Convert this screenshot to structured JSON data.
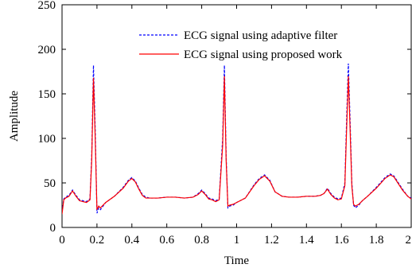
{
  "chart_data": {
    "type": "line",
    "title": "",
    "xlabel": "Time",
    "ylabel": "Amplitude",
    "xlim": [
      0,
      2
    ],
    "ylim": [
      0,
      250
    ],
    "xticks": [
      "0",
      "0.2",
      "0.4",
      "0.6",
      "0.8",
      "1",
      "1.2",
      "1.4",
      "1.6",
      "1.8",
      "2"
    ],
    "yticks": [
      "0",
      "50",
      "100",
      "150",
      "200",
      "250"
    ],
    "grid": false,
    "legend_position": "top-right",
    "series": [
      {
        "name": "ECG signal using adaptive filter",
        "color": "#0000ff",
        "dash": "dashed",
        "x": [
          0.0,
          0.01,
          0.02,
          0.04,
          0.06,
          0.08,
          0.1,
          0.12,
          0.14,
          0.16,
          0.17,
          0.18,
          0.19,
          0.2,
          0.21,
          0.22,
          0.25,
          0.3,
          0.35,
          0.38,
          0.4,
          0.42,
          0.44,
          0.46,
          0.48,
          0.5,
          0.55,
          0.6,
          0.65,
          0.7,
          0.75,
          0.78,
          0.8,
          0.82,
          0.84,
          0.86,
          0.88,
          0.9,
          0.92,
          0.93,
          0.94,
          0.95,
          0.96,
          0.98,
          1.0,
          1.05,
          1.1,
          1.13,
          1.16,
          1.19,
          1.22,
          1.26,
          1.3,
          1.35,
          1.4,
          1.45,
          1.48,
          1.5,
          1.52,
          1.54,
          1.56,
          1.58,
          1.6,
          1.62,
          1.63,
          1.64,
          1.65,
          1.66,
          1.67,
          1.68,
          1.7,
          1.72,
          1.75,
          1.8,
          1.85,
          1.88,
          1.9,
          1.92,
          1.95,
          1.98,
          2.0
        ],
        "y": [
          18,
          32,
          34,
          36,
          42,
          36,
          31,
          30,
          29,
          32,
          80,
          182,
          110,
          16,
          22,
          20,
          28,
          35,
          45,
          53,
          56,
          52,
          44,
          37,
          34,
          33,
          33,
          34,
          34,
          33,
          34,
          38,
          42,
          38,
          33,
          32,
          30,
          32,
          100,
          182,
          80,
          22,
          24,
          25,
          28,
          33,
          48,
          55,
          59,
          53,
          40,
          35,
          34,
          34,
          35,
          35,
          36,
          38,
          44,
          38,
          34,
          32,
          33,
          50,
          120,
          184,
          120,
          50,
          25,
          22,
          25,
          30,
          35,
          45,
          56,
          60,
          58,
          52,
          43,
          35,
          33
        ]
      },
      {
        "name": "ECG signal using proposed work",
        "color": "#ff0000",
        "dash": "solid",
        "x": [
          0.0,
          0.01,
          0.02,
          0.04,
          0.06,
          0.08,
          0.1,
          0.12,
          0.14,
          0.16,
          0.17,
          0.18,
          0.19,
          0.2,
          0.21,
          0.22,
          0.25,
          0.3,
          0.35,
          0.38,
          0.4,
          0.42,
          0.44,
          0.46,
          0.48,
          0.5,
          0.55,
          0.6,
          0.65,
          0.7,
          0.75,
          0.78,
          0.8,
          0.82,
          0.84,
          0.86,
          0.88,
          0.9,
          0.92,
          0.93,
          0.94,
          0.95,
          0.96,
          0.98,
          1.0,
          1.05,
          1.1,
          1.13,
          1.16,
          1.19,
          1.22,
          1.26,
          1.3,
          1.35,
          1.4,
          1.45,
          1.48,
          1.5,
          1.52,
          1.54,
          1.56,
          1.58,
          1.6,
          1.62,
          1.63,
          1.64,
          1.65,
          1.66,
          1.67,
          1.68,
          1.7,
          1.72,
          1.75,
          1.8,
          1.85,
          1.88,
          1.9,
          1.92,
          1.95,
          1.98,
          2.0
        ],
        "y": [
          15,
          31,
          33,
          35,
          41,
          35,
          30,
          29,
          28,
          31,
          75,
          168,
          100,
          20,
          24,
          22,
          28,
          35,
          44,
          52,
          55,
          51,
          43,
          36,
          33,
          33,
          33,
          34,
          34,
          33,
          34,
          37,
          41,
          37,
          32,
          31,
          29,
          31,
          92,
          170,
          75,
          24,
          25,
          26,
          28,
          33,
          47,
          54,
          58,
          52,
          40,
          35,
          34,
          34,
          35,
          35,
          36,
          38,
          43,
          37,
          33,
          31,
          32,
          47,
          110,
          170,
          110,
          46,
          26,
          24,
          26,
          30,
          35,
          44,
          55,
          59,
          57,
          51,
          42,
          35,
          32
        ]
      }
    ]
  }
}
